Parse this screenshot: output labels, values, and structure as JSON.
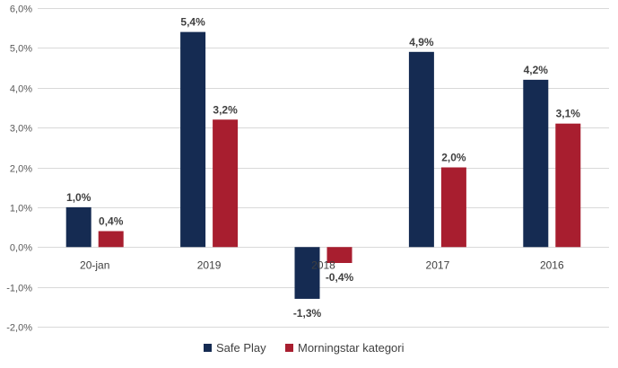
{
  "chart_data": {
    "type": "bar",
    "categories": [
      "20-jan",
      "2019",
      "2018",
      "2017",
      "2016"
    ],
    "series": [
      {
        "name": "Safe Play",
        "color": "#152B52",
        "values": [
          1.0,
          5.4,
          -1.3,
          4.9,
          4.2
        ],
        "labels": [
          "1,0%",
          "5,4%",
          "-1,3%",
          "4,9%",
          "4,2%"
        ]
      },
      {
        "name": "Morningstar kategori",
        "color": "#A81E2F",
        "values": [
          0.4,
          3.2,
          -0.4,
          2.0,
          3.1
        ],
        "labels": [
          "0,4%",
          "3,2%",
          "-0,4%",
          "2,0%",
          "3,1%"
        ]
      }
    ],
    "y_ticks": [
      6,
      5,
      4,
      3,
      2,
      1,
      0,
      -1,
      -2
    ],
    "y_tick_labels": [
      "6,0%",
      "5,0%",
      "4,0%",
      "3,0%",
      "2,0%",
      "1,0%",
      "0,0%",
      "-1,0%",
      "-2,0%"
    ],
    "ylim": [
      -2,
      6
    ],
    "grid": true,
    "legend_position": "bottom"
  }
}
